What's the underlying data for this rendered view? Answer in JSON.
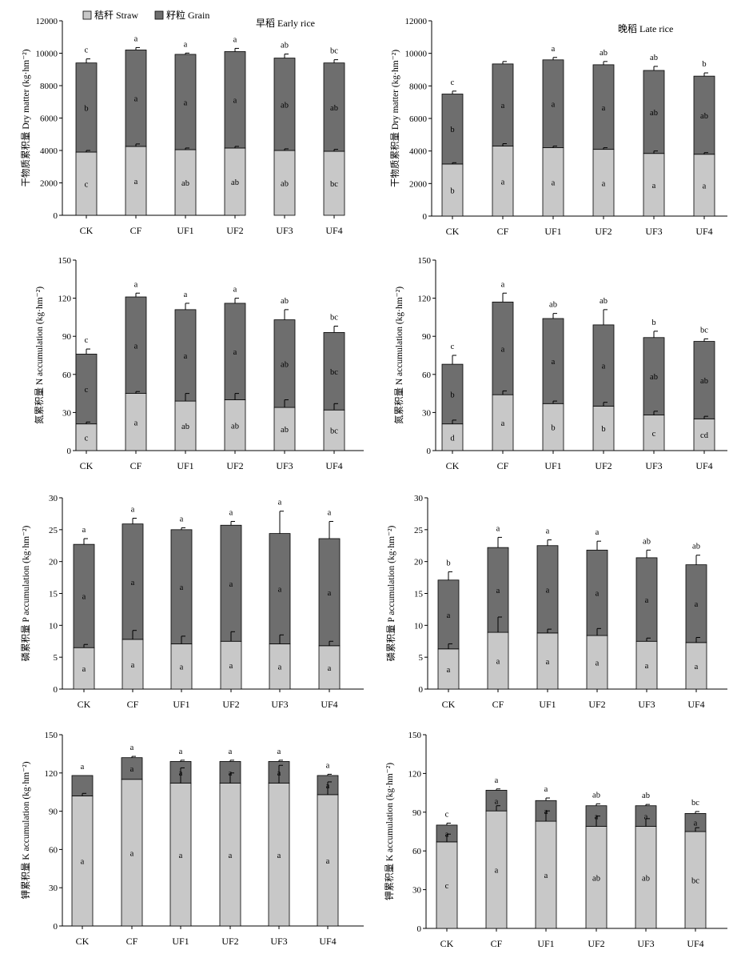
{
  "figure": {
    "legend": {
      "straw_label": "秸秆 Straw",
      "grain_label": "籽粒 Grain"
    },
    "colors": {
      "straw": "#c8c8c8",
      "grain": "#6e6e6e",
      "stroke": "#000000"
    },
    "categories": [
      "CK",
      "CF",
      "UF1",
      "UF2",
      "UF3",
      "UF4"
    ]
  },
  "chart_data": [
    {
      "type": "bar",
      "stacked": true,
      "season": "早稻 Early rice",
      "ylabel": "干物质累积量 Dry matter (kg·hm⁻²)",
      "ylim": [
        0,
        12000
      ],
      "yticks": [
        0,
        2000,
        4000,
        6000,
        8000,
        10000,
        12000
      ],
      "categories": [
        "CK",
        "CF",
        "UF1",
        "UF2",
        "UF3",
        "UF4"
      ],
      "series": [
        {
          "name": "秸秆 Straw",
          "values": [
            3900,
            4250,
            4050,
            4150,
            4000,
            3950
          ],
          "errors": [
            100,
            150,
            100,
            100,
            100,
            120
          ],
          "labels": [
            "c",
            "a",
            "ab",
            "ab",
            "ab",
            "bc"
          ]
        },
        {
          "name": "籽粒 Grain",
          "values": [
            5500,
            5950,
            5880,
            5950,
            5700,
            5450
          ],
          "errors": [
            250,
            150,
            80,
            200,
            250,
            200
          ],
          "labels": [
            "b",
            "a",
            "a",
            "a",
            "ab",
            "ab"
          ]
        }
      ],
      "total_labels": [
        "c",
        "a",
        "a",
        "a",
        "ab",
        "bc"
      ]
    },
    {
      "type": "bar",
      "stacked": true,
      "season": "晚稻 Late rice",
      "ylabel": "干物质累积量 Dry matter (kg·hm⁻²)",
      "ylim": [
        0,
        12000
      ],
      "yticks": [
        0,
        2000,
        4000,
        6000,
        8000,
        10000,
        12000
      ],
      "categories": [
        "CK",
        "CF",
        "UF1",
        "UF2",
        "UF3",
        "UF4"
      ],
      "series": [
        {
          "name": "秸秆 Straw",
          "values": [
            3200,
            4300,
            4200,
            4100,
            3850,
            3800
          ],
          "errors": [
            80,
            150,
            100,
            100,
            150,
            100
          ],
          "labels": [
            "b",
            "a",
            "a",
            "a",
            "a",
            "a"
          ]
        },
        {
          "name": "籽粒 Grain",
          "values": [
            4300,
            5050,
            5400,
            5200,
            5100,
            4800
          ],
          "errors": [
            180,
            150,
            150,
            200,
            250,
            200
          ],
          "labels": [
            "b",
            "a",
            "a",
            "a",
            "ab",
            "ab"
          ]
        }
      ],
      "total_labels": [
        "c",
        "",
        "a",
        "ab",
        "ab",
        "b"
      ]
    },
    {
      "type": "bar",
      "stacked": true,
      "ylabel": "氮累积量 N accumulation (kg·hm⁻²)",
      "ylim": [
        0,
        150
      ],
      "yticks": [
        0,
        30,
        60,
        90,
        120,
        150
      ],
      "categories": [
        "CK",
        "CF",
        "UF1",
        "UF2",
        "UF3",
        "UF4"
      ],
      "series": [
        {
          "name": "秸秆 Straw",
          "values": [
            21,
            45,
            39,
            40,
            34,
            32
          ],
          "errors": [
            1.5,
            1.5,
            6,
            5,
            6,
            5
          ],
          "labels": [
            "c",
            "a",
            "ab",
            "ab",
            "ab",
            "bc"
          ]
        },
        {
          "name": "籽粒 Grain",
          "values": [
            55,
            76,
            72,
            76,
            69,
            61
          ],
          "errors": [
            4,
            3,
            5,
            4,
            8,
            5
          ],
          "labels": [
            "c",
            "a",
            "a",
            "a",
            "ab",
            "bc"
          ]
        }
      ],
      "total_labels": [
        "c",
        "a",
        "a",
        "a",
        "ab",
        "bc"
      ]
    },
    {
      "type": "bar",
      "stacked": true,
      "ylabel": "氮累积量 N accumulation (kg·hm⁻²)",
      "ylim": [
        0,
        150
      ],
      "yticks": [
        0,
        30,
        60,
        90,
        120,
        150
      ],
      "categories": [
        "CK",
        "CF",
        "UF1",
        "UF2",
        "UF3",
        "UF4"
      ],
      "series": [
        {
          "name": "秸秆 Straw",
          "values": [
            21,
            44,
            37,
            35,
            28,
            25
          ],
          "errors": [
            3,
            3,
            2,
            3,
            3,
            2
          ],
          "labels": [
            "d",
            "a",
            "b",
            "b",
            "c",
            "cd"
          ]
        },
        {
          "name": "籽粒 Grain",
          "values": [
            47,
            73,
            67,
            64,
            61,
            61
          ],
          "errors": [
            7,
            7,
            4,
            12,
            5,
            2
          ],
          "labels": [
            "b",
            "a",
            "a",
            "a",
            "ab",
            "ab"
          ]
        }
      ],
      "total_labels": [
        "c",
        "a",
        "ab",
        "ab",
        "b",
        "bc"
      ]
    },
    {
      "type": "bar",
      "stacked": true,
      "ylabel": "磷累积量 P accumulation (kg·hm⁻²)",
      "ylim": [
        0,
        30
      ],
      "yticks": [
        0,
        5,
        10,
        15,
        20,
        25,
        30
      ],
      "categories": [
        "CK",
        "CF",
        "UF1",
        "UF2",
        "UF3",
        "UF4"
      ],
      "series": [
        {
          "name": "秸秆 Straw",
          "values": [
            6.5,
            7.8,
            7.1,
            7.5,
            7.1,
            6.8
          ],
          "errors": [
            0.5,
            1.4,
            1.2,
            1.5,
            1.4,
            0.7
          ],
          "labels": [
            "a",
            "a",
            "a",
            "a",
            "a",
            "a"
          ]
        },
        {
          "name": "籽粒 Grain",
          "values": [
            16.2,
            18.1,
            17.9,
            18.2,
            17.3,
            16.8
          ],
          "errors": [
            0.9,
            0.9,
            0.3,
            0.6,
            3.5,
            2.7
          ],
          "labels": [
            "a",
            "a",
            "a",
            "a",
            "a",
            "a"
          ]
        }
      ],
      "total_labels": [
        "a",
        "a",
        "a",
        "a",
        "a",
        "a"
      ]
    },
    {
      "type": "bar",
      "stacked": true,
      "ylabel": "磷累积量 P accumulation (kg·hm⁻²)",
      "ylim": [
        0,
        30
      ],
      "yticks": [
        0,
        5,
        10,
        15,
        20,
        25,
        30
      ],
      "categories": [
        "CK",
        "CF",
        "UF1",
        "UF2",
        "UF3",
        "UF4"
      ],
      "series": [
        {
          "name": "秸秆 Straw",
          "values": [
            6.3,
            8.9,
            8.8,
            8.4,
            7.5,
            7.3
          ],
          "errors": [
            0.8,
            2.4,
            0.6,
            1.1,
            0.5,
            0.8
          ],
          "labels": [
            "a",
            "a",
            "a",
            "a",
            "a",
            "a"
          ]
        },
        {
          "name": "籽粒 Grain",
          "values": [
            10.8,
            13.3,
            13.7,
            13.4,
            13.1,
            12.2
          ],
          "errors": [
            1.3,
            1.6,
            0.9,
            1.4,
            1.2,
            1.5
          ],
          "labels": [
            "a",
            "a",
            "a",
            "a",
            "a",
            "a"
          ]
        }
      ],
      "total_labels": [
        "b",
        "a",
        "a",
        "a",
        "ab",
        "ab"
      ]
    },
    {
      "type": "bar",
      "stacked": true,
      "ylabel": "钾累积量 K accumulation (kg·hm⁻²)",
      "ylim": [
        0,
        150
      ],
      "yticks": [
        0,
        30,
        60,
        90,
        120,
        150
      ],
      "categories": [
        "CK",
        "CF",
        "UF1",
        "UF2",
        "UF3",
        "UF4"
      ],
      "series": [
        {
          "name": "秸秆 Straw",
          "values": [
            102,
            115,
            112,
            112,
            112,
            103
          ],
          "errors": [
            2,
            0,
            12,
            8,
            14,
            10
          ],
          "labels": [
            "a",
            "a",
            "a",
            "a",
            "a",
            "a"
          ]
        },
        {
          "name": "籽粒 Grain",
          "values": [
            16,
            17,
            17,
            17,
            17,
            15
          ],
          "errors": [
            0,
            1,
            1,
            1,
            1,
            1
          ],
          "labels": [
            "",
            "a",
            "a",
            "a",
            "a",
            "a"
          ]
        }
      ],
      "total_labels": [
        "a",
        "a",
        "a",
        "a",
        "a",
        "a"
      ]
    },
    {
      "type": "bar",
      "stacked": true,
      "ylabel": "钾累积量 K accumulation (kg·hm⁻²)",
      "ylim": [
        0,
        150
      ],
      "yticks": [
        0,
        30,
        60,
        90,
        120,
        150
      ],
      "categories": [
        "CK",
        "CF",
        "UF1",
        "UF2",
        "UF3",
        "UF4"
      ],
      "series": [
        {
          "name": "秸秆 Straw",
          "values": [
            67,
            91,
            83,
            79,
            79,
            75
          ],
          "errors": [
            6,
            4,
            8,
            8,
            6,
            3
          ],
          "labels": [
            "c",
            "a",
            "a",
            "ab",
            "ab",
            "bc"
          ]
        },
        {
          "name": "籽粒 Grain",
          "values": [
            13,
            16,
            16,
            16,
            16,
            14
          ],
          "errors": [
            1.5,
            1,
            2,
            1.5,
            1,
            1.5
          ],
          "labels": [
            "a",
            "a",
            "a",
            "a",
            "a",
            "a"
          ]
        }
      ],
      "total_labels": [
        "c",
        "a",
        "a",
        "ab",
        "ab",
        "bc"
      ]
    }
  ]
}
